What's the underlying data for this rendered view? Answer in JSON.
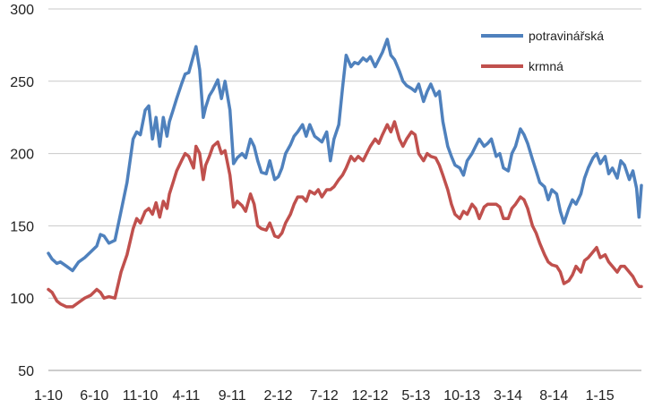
{
  "chart_data": {
    "type": "line",
    "title": "",
    "xlabel": "",
    "ylabel": "",
    "ylim": [
      50,
      300
    ],
    "yticks": [
      50,
      100,
      150,
      200,
      250,
      300
    ],
    "x_tick_labels": [
      "1-10",
      "6-10",
      "11-10",
      "4-11",
      "9-11",
      "2-12",
      "7-12",
      "12-12",
      "5-13",
      "10-13",
      "3-14",
      "8-14",
      "1-15"
    ],
    "grid": "horizontal",
    "legend_position": "top-right",
    "series": [
      {
        "name": "potravinářská",
        "color": "#4F81BD",
        "points": [
          [
            0,
            131
          ],
          [
            0.3,
            127
          ],
          [
            0.7,
            124
          ],
          [
            1.0,
            125
          ],
          [
            1.5,
            122
          ],
          [
            2.0,
            119
          ],
          [
            2.5,
            125
          ],
          [
            3.0,
            128
          ],
          [
            3.5,
            132
          ],
          [
            4.0,
            136
          ],
          [
            4.3,
            144
          ],
          [
            4.6,
            143
          ],
          [
            5.0,
            138
          ],
          [
            5.5,
            140
          ],
          [
            6.0,
            160
          ],
          [
            6.5,
            180
          ],
          [
            7.0,
            210
          ],
          [
            7.3,
            215
          ],
          [
            7.6,
            213
          ],
          [
            8.0,
            230
          ],
          [
            8.3,
            233
          ],
          [
            8.6,
            210
          ],
          [
            8.9,
            225
          ],
          [
            9.2,
            205
          ],
          [
            9.5,
            225
          ],
          [
            9.8,
            212
          ],
          [
            10.0,
            222
          ],
          [
            10.3,
            230
          ],
          [
            10.6,
            238
          ],
          [
            11.0,
            248
          ],
          [
            11.3,
            255
          ],
          [
            11.6,
            256
          ],
          [
            12.0,
            268
          ],
          [
            12.2,
            274
          ],
          [
            12.5,
            258
          ],
          [
            12.8,
            225
          ],
          [
            13.0,
            232
          ],
          [
            13.3,
            240
          ],
          [
            13.6,
            244
          ],
          [
            14.0,
            251
          ],
          [
            14.3,
            238
          ],
          [
            14.6,
            250
          ],
          [
            15.0,
            230
          ],
          [
            15.3,
            193
          ],
          [
            15.6,
            197
          ],
          [
            16.0,
            200
          ],
          [
            16.3,
            197
          ],
          [
            16.7,
            210
          ],
          [
            17.0,
            205
          ],
          [
            17.3,
            195
          ],
          [
            17.6,
            187
          ],
          [
            18.0,
            186
          ],
          [
            18.3,
            195
          ],
          [
            18.7,
            182
          ],
          [
            19.0,
            184
          ],
          [
            19.3,
            190
          ],
          [
            19.6,
            200
          ],
          [
            20.0,
            206
          ],
          [
            20.3,
            212
          ],
          [
            20.6,
            215
          ],
          [
            21.0,
            220
          ],
          [
            21.3,
            212
          ],
          [
            21.6,
            220
          ],
          [
            22.0,
            212
          ],
          [
            22.3,
            210
          ],
          [
            22.6,
            208
          ],
          [
            23.0,
            215
          ],
          [
            23.3,
            195
          ],
          [
            23.6,
            210
          ],
          [
            24.0,
            220
          ],
          [
            24.3,
            245
          ],
          [
            24.6,
            268
          ],
          [
            25.0,
            260
          ],
          [
            25.3,
            263
          ],
          [
            25.6,
            262
          ],
          [
            26.0,
            266
          ],
          [
            26.3,
            264
          ],
          [
            26.6,
            267
          ],
          [
            27.0,
            260
          ],
          [
            27.3,
            265
          ],
          [
            27.6,
            270
          ],
          [
            28.0,
            279
          ],
          [
            28.3,
            268
          ],
          [
            28.6,
            265
          ],
          [
            29.0,
            257
          ],
          [
            29.3,
            250
          ],
          [
            29.6,
            247
          ],
          [
            30.0,
            245
          ],
          [
            30.3,
            243
          ],
          [
            30.6,
            248
          ],
          [
            31.0,
            236
          ],
          [
            31.3,
            243
          ],
          [
            31.6,
            248
          ],
          [
            32.0,
            240
          ],
          [
            32.3,
            243
          ],
          [
            32.6,
            222
          ],
          [
            33.0,
            205
          ],
          [
            33.3,
            198
          ],
          [
            33.6,
            192
          ],
          [
            34.0,
            190
          ],
          [
            34.3,
            185
          ],
          [
            34.6,
            195
          ],
          [
            35.0,
            200
          ],
          [
            35.3,
            205
          ],
          [
            35.6,
            210
          ],
          [
            36.0,
            205
          ],
          [
            36.3,
            207
          ],
          [
            36.6,
            210
          ],
          [
            37.0,
            198
          ],
          [
            37.3,
            200
          ],
          [
            37.6,
            190
          ],
          [
            38.0,
            188
          ],
          [
            38.3,
            200
          ],
          [
            38.6,
            205
          ],
          [
            39.0,
            217
          ],
          [
            39.3,
            213
          ],
          [
            39.6,
            207
          ],
          [
            40.0,
            196
          ],
          [
            40.3,
            188
          ],
          [
            40.6,
            180
          ],
          [
            41.0,
            177
          ],
          [
            41.3,
            168
          ],
          [
            41.6,
            175
          ],
          [
            42.0,
            172
          ],
          [
            42.3,
            160
          ],
          [
            42.6,
            152
          ],
          [
            43.0,
            162
          ],
          [
            43.3,
            168
          ],
          [
            43.6,
            165
          ],
          [
            44.0,
            172
          ],
          [
            44.3,
            183
          ],
          [
            44.6,
            190
          ],
          [
            45.0,
            197
          ],
          [
            45.3,
            200
          ],
          [
            45.6,
            193
          ],
          [
            46.0,
            198
          ],
          [
            46.3,
            186
          ],
          [
            46.6,
            190
          ],
          [
            47.0,
            183
          ],
          [
            47.3,
            195
          ],
          [
            47.6,
            192
          ],
          [
            48.0,
            182
          ],
          [
            48.3,
            188
          ],
          [
            48.6,
            176
          ],
          [
            48.8,
            156
          ],
          [
            49.0,
            178
          ]
        ]
      },
      {
        "name": "krmná",
        "color": "#C0504D",
        "points": [
          [
            0,
            106
          ],
          [
            0.3,
            104
          ],
          [
            0.7,
            98
          ],
          [
            1.0,
            96
          ],
          [
            1.5,
            94
          ],
          [
            2.0,
            94
          ],
          [
            2.5,
            97
          ],
          [
            3.0,
            100
          ],
          [
            3.5,
            102
          ],
          [
            4.0,
            106
          ],
          [
            4.3,
            104
          ],
          [
            4.6,
            100
          ],
          [
            5.0,
            101
          ],
          [
            5.5,
            100
          ],
          [
            6.0,
            118
          ],
          [
            6.5,
            130
          ],
          [
            7.0,
            148
          ],
          [
            7.3,
            155
          ],
          [
            7.6,
            152
          ],
          [
            8.0,
            160
          ],
          [
            8.3,
            162
          ],
          [
            8.6,
            158
          ],
          [
            8.9,
            166
          ],
          [
            9.2,
            156
          ],
          [
            9.5,
            167
          ],
          [
            9.8,
            162
          ],
          [
            10.0,
            172
          ],
          [
            10.3,
            180
          ],
          [
            10.6,
            188
          ],
          [
            11.0,
            195
          ],
          [
            11.3,
            200
          ],
          [
            11.6,
            198
          ],
          [
            12.0,
            190
          ],
          [
            12.2,
            205
          ],
          [
            12.5,
            200
          ],
          [
            12.8,
            182
          ],
          [
            13.0,
            192
          ],
          [
            13.3,
            198
          ],
          [
            13.6,
            205
          ],
          [
            14.0,
            208
          ],
          [
            14.3,
            200
          ],
          [
            14.6,
            202
          ],
          [
            15.0,
            185
          ],
          [
            15.3,
            163
          ],
          [
            15.6,
            167
          ],
          [
            16.0,
            164
          ],
          [
            16.3,
            160
          ],
          [
            16.7,
            172
          ],
          [
            17.0,
            165
          ],
          [
            17.3,
            150
          ],
          [
            17.6,
            148
          ],
          [
            18.0,
            147
          ],
          [
            18.3,
            152
          ],
          [
            18.7,
            143
          ],
          [
            19.0,
            142
          ],
          [
            19.3,
            145
          ],
          [
            19.6,
            152
          ],
          [
            20.0,
            158
          ],
          [
            20.3,
            165
          ],
          [
            20.6,
            170
          ],
          [
            21.0,
            170
          ],
          [
            21.3,
            167
          ],
          [
            21.6,
            174
          ],
          [
            22.0,
            172
          ],
          [
            22.3,
            175
          ],
          [
            22.6,
            170
          ],
          [
            23.0,
            175
          ],
          [
            23.3,
            175
          ],
          [
            23.6,
            177
          ],
          [
            24.0,
            182
          ],
          [
            24.3,
            185
          ],
          [
            24.6,
            190
          ],
          [
            25.0,
            198
          ],
          [
            25.3,
            195
          ],
          [
            25.6,
            198
          ],
          [
            26.0,
            195
          ],
          [
            26.3,
            200
          ],
          [
            26.6,
            205
          ],
          [
            27.0,
            210
          ],
          [
            27.3,
            207
          ],
          [
            27.6,
            213
          ],
          [
            28.0,
            220
          ],
          [
            28.3,
            215
          ],
          [
            28.6,
            222
          ],
          [
            29.0,
            210
          ],
          [
            29.3,
            205
          ],
          [
            29.6,
            210
          ],
          [
            30.0,
            215
          ],
          [
            30.3,
            213
          ],
          [
            30.6,
            200
          ],
          [
            31.0,
            195
          ],
          [
            31.3,
            200
          ],
          [
            31.6,
            198
          ],
          [
            32.0,
            197
          ],
          [
            32.3,
            192
          ],
          [
            32.6,
            185
          ],
          [
            33.0,
            175
          ],
          [
            33.3,
            165
          ],
          [
            33.6,
            158
          ],
          [
            34.0,
            155
          ],
          [
            34.3,
            160
          ],
          [
            34.6,
            158
          ],
          [
            35.0,
            165
          ],
          [
            35.3,
            162
          ],
          [
            35.6,
            155
          ],
          [
            36.0,
            163
          ],
          [
            36.3,
            165
          ],
          [
            36.6,
            165
          ],
          [
            37.0,
            165
          ],
          [
            37.3,
            163
          ],
          [
            37.6,
            155
          ],
          [
            38.0,
            155
          ],
          [
            38.3,
            162
          ],
          [
            38.6,
            165
          ],
          [
            39.0,
            170
          ],
          [
            39.3,
            168
          ],
          [
            39.6,
            162
          ],
          [
            40.0,
            150
          ],
          [
            40.3,
            145
          ],
          [
            40.6,
            138
          ],
          [
            41.0,
            130
          ],
          [
            41.3,
            125
          ],
          [
            41.6,
            123
          ],
          [
            42.0,
            122
          ],
          [
            42.3,
            118
          ],
          [
            42.6,
            110
          ],
          [
            43.0,
            112
          ],
          [
            43.3,
            116
          ],
          [
            43.6,
            122
          ],
          [
            44.0,
            118
          ],
          [
            44.3,
            126
          ],
          [
            44.6,
            128
          ],
          [
            45.0,
            132
          ],
          [
            45.3,
            135
          ],
          [
            45.6,
            128
          ],
          [
            46.0,
            130
          ],
          [
            46.3,
            125
          ],
          [
            46.6,
            122
          ],
          [
            47.0,
            118
          ],
          [
            47.3,
            122
          ],
          [
            47.6,
            122
          ],
          [
            48.0,
            118
          ],
          [
            48.3,
            115
          ],
          [
            48.6,
            110
          ],
          [
            48.8,
            108
          ],
          [
            49.0,
            108
          ]
        ]
      }
    ]
  }
}
